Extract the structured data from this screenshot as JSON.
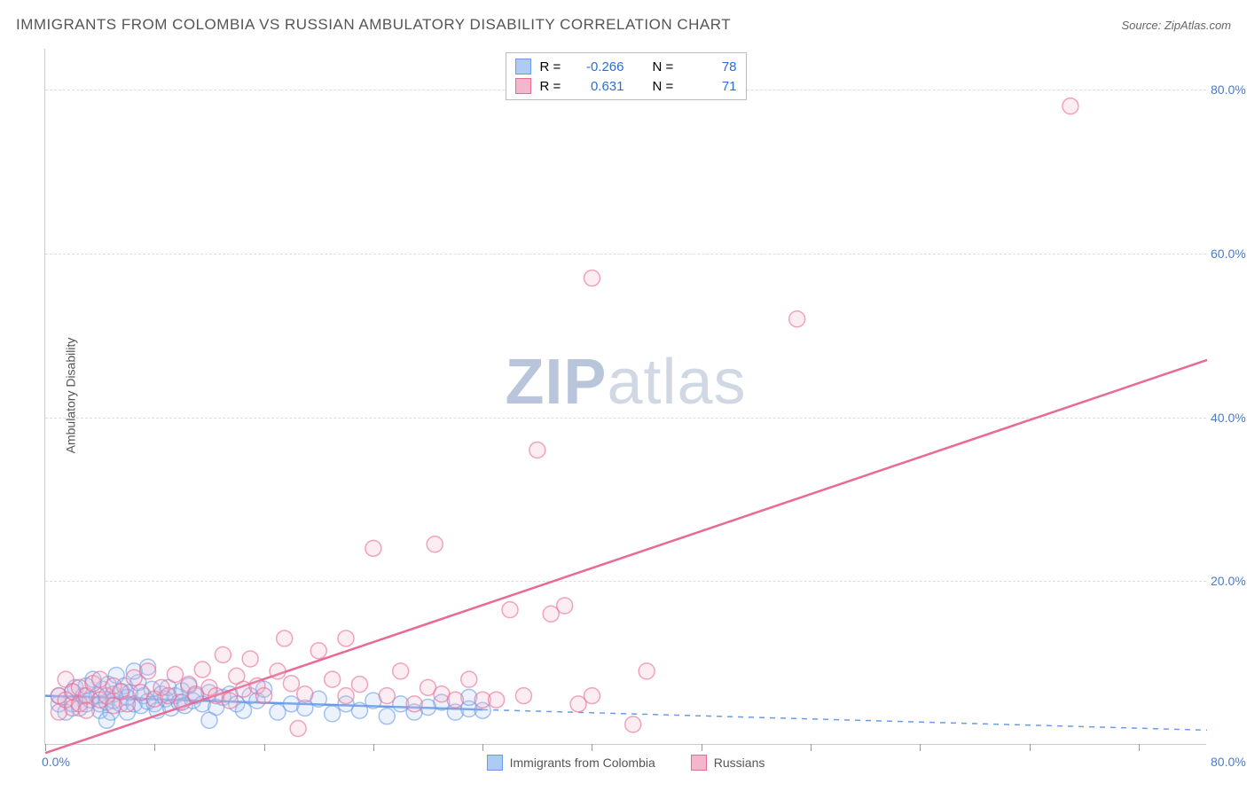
{
  "title": "IMMIGRANTS FROM COLOMBIA VS RUSSIAN AMBULATORY DISABILITY CORRELATION CHART",
  "source": "Source: ZipAtlas.com",
  "y_axis_label": "Ambulatory Disability",
  "watermark_zip": "ZIP",
  "watermark_atlas": "atlas",
  "chart": {
    "type": "scatter",
    "background_color": "#ffffff",
    "grid_color": "#dddddd",
    "axis_color": "#cccccc",
    "tick_label_color": "#4a7bc8",
    "label_color": "#555555",
    "xlim": [
      0,
      85
    ],
    "ylim": [
      0,
      85
    ],
    "y_ticks": [
      20,
      40,
      60,
      80
    ],
    "y_tick_labels": [
      "20.0%",
      "40.0%",
      "60.0%",
      "80.0%"
    ],
    "x_tick_positions": [
      0,
      8,
      16,
      24,
      32,
      40,
      48,
      56,
      64,
      72,
      80
    ],
    "x_start_label": "0.0%",
    "x_end_label": "80.0%",
    "marker_radius": 9,
    "marker_stroke_width": 1.5,
    "marker_fill_opacity": 0.25,
    "series": [
      {
        "id": "colombia",
        "label": "Immigrants from Colombia",
        "color": "#6a9be8",
        "fill": "#aecbf3",
        "R": "-0.266",
        "N": "78",
        "trend": {
          "x1": 0,
          "y1": 6.0,
          "x2": 32,
          "y2": 4.3,
          "solid_until_x": 32,
          "extend_to_x": 85,
          "y_at_extend": 1.8,
          "width": 2.5,
          "dash": "6,6"
        },
        "points": [
          [
            1,
            5
          ],
          [
            1,
            6
          ],
          [
            1.5,
            4
          ],
          [
            2,
            6.5
          ],
          [
            2,
            5
          ],
          [
            2.2,
            7
          ],
          [
            2.5,
            4.5
          ],
          [
            2.8,
            6
          ],
          [
            3,
            5
          ],
          [
            3,
            7.2
          ],
          [
            3.3,
            5.5
          ],
          [
            3.5,
            8
          ],
          [
            3.8,
            6
          ],
          [
            4,
            5
          ],
          [
            4,
            4.2
          ],
          [
            4.2,
            6.8
          ],
          [
            4.5,
            5.2
          ],
          [
            4.6,
            7.4
          ],
          [
            4.8,
            4
          ],
          [
            5,
            6.2
          ],
          [
            5,
            5.4
          ],
          [
            5.2,
            8.5
          ],
          [
            5.5,
            5
          ],
          [
            5.6,
            6.5
          ],
          [
            5.8,
            7.2
          ],
          [
            6,
            4
          ],
          [
            6,
            5.8
          ],
          [
            6.2,
            6.4
          ],
          [
            6.5,
            5
          ],
          [
            6.8,
            7.6
          ],
          [
            7,
            4.8
          ],
          [
            7.2,
            6
          ],
          [
            7.5,
            5.3
          ],
          [
            7.8,
            6.8
          ],
          [
            8,
            5
          ],
          [
            8.2,
            4.2
          ],
          [
            8.5,
            6.2
          ],
          [
            8.8,
            5.6
          ],
          [
            9,
            7
          ],
          [
            9.2,
            4.5
          ],
          [
            9.5,
            6
          ],
          [
            9.8,
            5.2
          ],
          [
            10,
            6.6
          ],
          [
            10.2,
            4.8
          ],
          [
            10.5,
            7.2
          ],
          [
            10.8,
            5.4
          ],
          [
            11,
            6
          ],
          [
            11.5,
            5
          ],
          [
            12,
            6.4
          ],
          [
            12.5,
            4.6
          ],
          [
            13,
            5.8
          ],
          [
            13.5,
            6.2
          ],
          [
            14,
            5
          ],
          [
            14.5,
            4.2
          ],
          [
            15,
            6
          ],
          [
            15.5,
            5.4
          ],
          [
            16,
            6.8
          ],
          [
            17,
            4
          ],
          [
            18,
            5
          ],
          [
            19,
            4.5
          ],
          [
            20,
            5.6
          ],
          [
            21,
            3.8
          ],
          [
            22,
            5
          ],
          [
            23,
            4.2
          ],
          [
            24,
            5.4
          ],
          [
            25,
            3.5
          ],
          [
            26,
            5
          ],
          [
            27,
            4
          ],
          [
            28,
            4.6
          ],
          [
            29,
            5.2
          ],
          [
            30,
            4
          ],
          [
            31,
            4.4
          ],
          [
            31,
            5.8
          ],
          [
            32,
            4.2
          ],
          [
            7.5,
            9.5
          ],
          [
            12,
            3
          ],
          [
            4.5,
            3
          ],
          [
            6.5,
            9
          ]
        ]
      },
      {
        "id": "russians",
        "label": "Russians",
        "color": "#e86a95",
        "fill": "#f4b6cc",
        "R": "0.631",
        "N": "71",
        "trend": {
          "x1": 0,
          "y1": -1,
          "x2": 85,
          "y2": 47,
          "solid_until_x": 85,
          "extend_to_x": 85,
          "y_at_extend": 47,
          "width": 2.5,
          "dash": ""
        },
        "points": [
          [
            1,
            4
          ],
          [
            1,
            6
          ],
          [
            1.5,
            5.5
          ],
          [
            1.5,
            8
          ],
          [
            2,
            4.5
          ],
          [
            2,
            6.5
          ],
          [
            2.5,
            5
          ],
          [
            2.5,
            7
          ],
          [
            3,
            6
          ],
          [
            3,
            4.2
          ],
          [
            3.5,
            7.5
          ],
          [
            4,
            5.5
          ],
          [
            4,
            8
          ],
          [
            4.5,
            6
          ],
          [
            5,
            7.2
          ],
          [
            5,
            4.8
          ],
          [
            5.5,
            6.5
          ],
          [
            6,
            5
          ],
          [
            6.5,
            8.2
          ],
          [
            7,
            6.4
          ],
          [
            7.5,
            9
          ],
          [
            8,
            5.6
          ],
          [
            8.5,
            7
          ],
          [
            9,
            6
          ],
          [
            9.5,
            8.6
          ],
          [
            10,
            5.2
          ],
          [
            10.5,
            7.4
          ],
          [
            11,
            6.2
          ],
          [
            11.5,
            9.2
          ],
          [
            12,
            7
          ],
          [
            12.5,
            6
          ],
          [
            13,
            11
          ],
          [
            13.5,
            5.4
          ],
          [
            14,
            8.4
          ],
          [
            14.5,
            6.8
          ],
          [
            15,
            10.5
          ],
          [
            15.5,
            7.2
          ],
          [
            16,
            6
          ],
          [
            17,
            9
          ],
          [
            17.5,
            13
          ],
          [
            18,
            7.5
          ],
          [
            19,
            6.2
          ],
          [
            20,
            11.5
          ],
          [
            21,
            8
          ],
          [
            22,
            6
          ],
          [
            22,
            13
          ],
          [
            23,
            7.4
          ],
          [
            24,
            24
          ],
          [
            25,
            6
          ],
          [
            26,
            9
          ],
          [
            27,
            5
          ],
          [
            28,
            7
          ],
          [
            28.5,
            24.5
          ],
          [
            29,
            6.2
          ],
          [
            30,
            5.5
          ],
          [
            31,
            8
          ],
          [
            32,
            5.5
          ],
          [
            33,
            5.5
          ],
          [
            34,
            16.5
          ],
          [
            35,
            6
          ],
          [
            36,
            36
          ],
          [
            37,
            16
          ],
          [
            38,
            17
          ],
          [
            39,
            5
          ],
          [
            40,
            6
          ],
          [
            43,
            2.5
          ],
          [
            44,
            9
          ],
          [
            40,
            57
          ],
          [
            55,
            52
          ],
          [
            75,
            78
          ],
          [
            18.5,
            2
          ]
        ]
      }
    ]
  },
  "top_legend_labels": {
    "R": "R =",
    "N": "N ="
  },
  "bottom_legend": {
    "items": [
      {
        "label": "Immigrants from Colombia",
        "color": "#6a9be8",
        "fill": "#aecbf3"
      },
      {
        "label": "Russians",
        "color": "#e86a95",
        "fill": "#f4b6cc"
      }
    ]
  }
}
